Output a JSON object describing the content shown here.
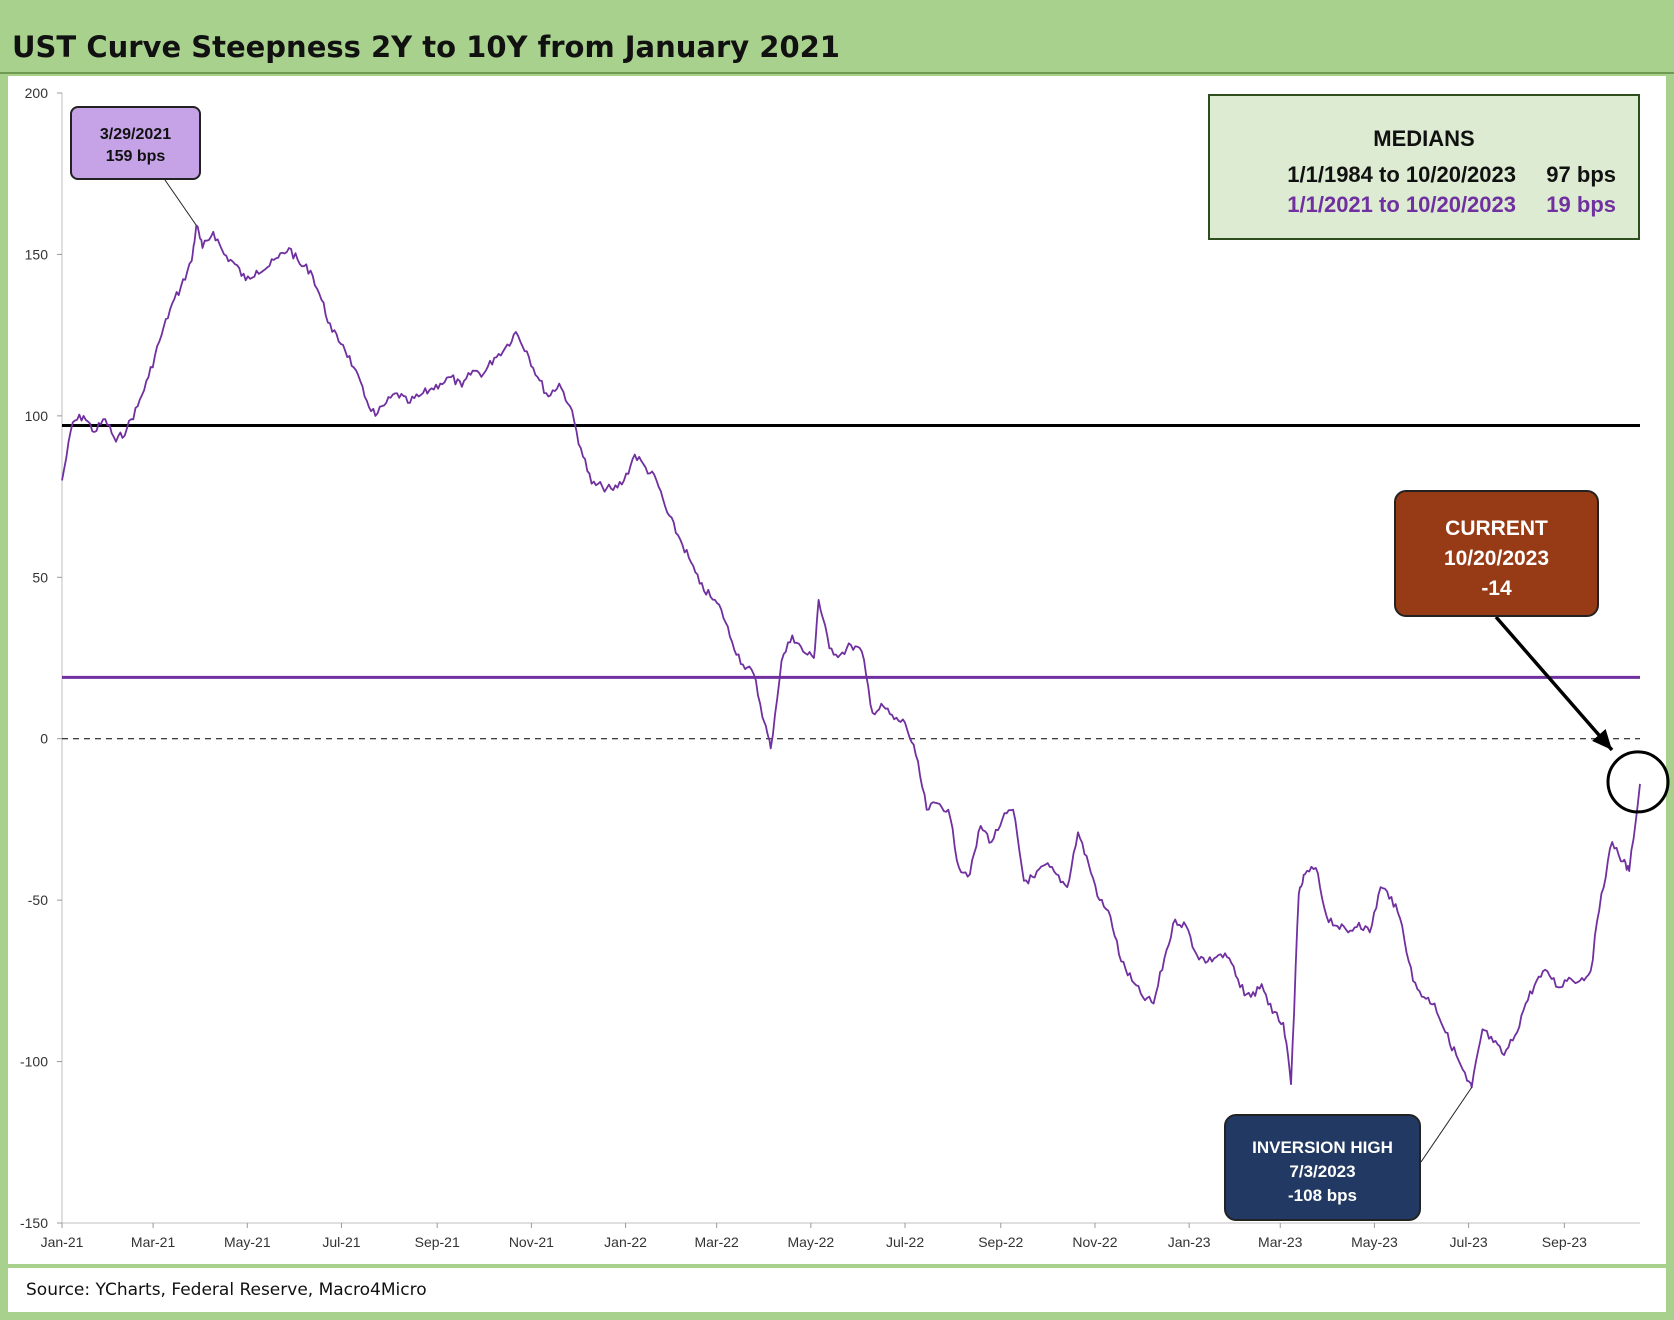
{
  "title": "UST Curve Steepness 2Y to 10Y from January 2021",
  "source": "Source: YCharts, Federal Reserve, Macro4Micro",
  "chart_data": {
    "type": "line",
    "title": "UST Curve Steepness 2Y to 10Y from January 2021",
    "xlabel": "",
    "ylabel": "",
    "ylim": [
      -150,
      200
    ],
    "yticks": [
      200,
      150,
      100,
      50,
      0,
      -50,
      -100,
      -150
    ],
    "x_range": [
      "2021-01-01",
      "2023-10-20"
    ],
    "x_ticks": [
      {
        "date": "2021-01-01",
        "label": "Jan-21"
      },
      {
        "date": "2021-03-01",
        "label": "Mar-21"
      },
      {
        "date": "2021-05-01",
        "label": "May-21"
      },
      {
        "date": "2021-07-01",
        "label": "Jul-21"
      },
      {
        "date": "2021-09-01",
        "label": "Sep-21"
      },
      {
        "date": "2021-11-01",
        "label": "Nov-21"
      },
      {
        "date": "2022-01-01",
        "label": "Jan-22"
      },
      {
        "date": "2022-03-01",
        "label": "Mar-22"
      },
      {
        "date": "2022-05-01",
        "label": "May-22"
      },
      {
        "date": "2022-07-01",
        "label": "Jul-22"
      },
      {
        "date": "2022-09-01",
        "label": "Sep-22"
      },
      {
        "date": "2022-11-01",
        "label": "Nov-22"
      },
      {
        "date": "2023-01-01",
        "label": "Jan-23"
      },
      {
        "date": "2023-03-01",
        "label": "Mar-23"
      },
      {
        "date": "2023-05-01",
        "label": "May-23"
      },
      {
        "date": "2023-07-01",
        "label": "Jul-23"
      },
      {
        "date": "2023-09-01",
        "label": "Sep-23"
      }
    ],
    "grid": false,
    "series": [
      {
        "color": "#7030a0",
        "points": [
          [
            "2021-01-01",
            80
          ],
          [
            "2021-01-08",
            98
          ],
          [
            "2021-01-15",
            100
          ],
          [
            "2021-01-22",
            95
          ],
          [
            "2021-01-29",
            99
          ],
          [
            "2021-02-05",
            92
          ],
          [
            "2021-02-12",
            96
          ],
          [
            "2021-02-19",
            103
          ],
          [
            "2021-02-26",
            112
          ],
          [
            "2021-03-05",
            123
          ],
          [
            "2021-03-12",
            133
          ],
          [
            "2021-03-19",
            140
          ],
          [
            "2021-03-26",
            148
          ],
          [
            "2021-03-29",
            159
          ],
          [
            "2021-04-02",
            152
          ],
          [
            "2021-04-09",
            157
          ],
          [
            "2021-04-16",
            150
          ],
          [
            "2021-04-23",
            147
          ],
          [
            "2021-04-30",
            142
          ],
          [
            "2021-05-07",
            145
          ],
          [
            "2021-05-14",
            146
          ],
          [
            "2021-05-21",
            149
          ],
          [
            "2021-05-28",
            152
          ],
          [
            "2021-06-04",
            147
          ],
          [
            "2021-06-11",
            145
          ],
          [
            "2021-06-18",
            136
          ],
          [
            "2021-06-25",
            126
          ],
          [
            "2021-07-02",
            122
          ],
          [
            "2021-07-09",
            115
          ],
          [
            "2021-07-16",
            106
          ],
          [
            "2021-07-23",
            100
          ],
          [
            "2021-07-30",
            104
          ],
          [
            "2021-08-06",
            107
          ],
          [
            "2021-08-13",
            104
          ],
          [
            "2021-08-20",
            106
          ],
          [
            "2021-08-27",
            108
          ],
          [
            "2021-09-03",
            110
          ],
          [
            "2021-09-10",
            112
          ],
          [
            "2021-09-17",
            109
          ],
          [
            "2021-09-24",
            114
          ],
          [
            "2021-10-01",
            113
          ],
          [
            "2021-10-08",
            118
          ],
          [
            "2021-10-15",
            121
          ],
          [
            "2021-10-22",
            126
          ],
          [
            "2021-10-29",
            120
          ],
          [
            "2021-11-05",
            112
          ],
          [
            "2021-11-12",
            106
          ],
          [
            "2021-11-19",
            110
          ],
          [
            "2021-11-26",
            103
          ],
          [
            "2021-12-03",
            90
          ],
          [
            "2021-12-10",
            79
          ],
          [
            "2021-12-17",
            78
          ],
          [
            "2021-12-24",
            77
          ],
          [
            "2021-12-31",
            80
          ],
          [
            "2022-01-07",
            88
          ],
          [
            "2022-01-14",
            84
          ],
          [
            "2022-01-21",
            80
          ],
          [
            "2022-01-28",
            70
          ],
          [
            "2022-02-04",
            63
          ],
          [
            "2022-02-11",
            56
          ],
          [
            "2022-02-18",
            48
          ],
          [
            "2022-02-25",
            44
          ],
          [
            "2022-03-04",
            40
          ],
          [
            "2022-03-11",
            30
          ],
          [
            "2022-03-18",
            23
          ],
          [
            "2022-03-25",
            20
          ],
          [
            "2022-04-01",
            5
          ],
          [
            "2022-04-05",
            -3
          ],
          [
            "2022-04-12",
            24
          ],
          [
            "2022-04-19",
            32
          ],
          [
            "2022-04-26",
            27
          ],
          [
            "2022-05-03",
            25
          ],
          [
            "2022-05-06",
            43
          ],
          [
            "2022-05-13",
            28
          ],
          [
            "2022-05-20",
            26
          ],
          [
            "2022-05-27",
            29
          ],
          [
            "2022-06-03",
            27
          ],
          [
            "2022-06-10",
            8
          ],
          [
            "2022-06-17",
            10
          ],
          [
            "2022-06-24",
            6
          ],
          [
            "2022-07-01",
            5
          ],
          [
            "2022-07-08",
            -5
          ],
          [
            "2022-07-15",
            -22
          ],
          [
            "2022-07-22",
            -20
          ],
          [
            "2022-07-29",
            -22
          ],
          [
            "2022-08-05",
            -40
          ],
          [
            "2022-08-12",
            -42
          ],
          [
            "2022-08-19",
            -27
          ],
          [
            "2022-08-26",
            -32
          ],
          [
            "2022-09-02",
            -25
          ],
          [
            "2022-09-09",
            -22
          ],
          [
            "2022-09-16",
            -44
          ],
          [
            "2022-09-23",
            -43
          ],
          [
            "2022-09-30",
            -39
          ],
          [
            "2022-10-07",
            -42
          ],
          [
            "2022-10-14",
            -46
          ],
          [
            "2022-10-21",
            -29
          ],
          [
            "2022-10-28",
            -39
          ],
          [
            "2022-11-04",
            -50
          ],
          [
            "2022-11-11",
            -55
          ],
          [
            "2022-11-18",
            -69
          ],
          [
            "2022-11-25",
            -75
          ],
          [
            "2022-12-02",
            -80
          ],
          [
            "2022-12-09",
            -82
          ],
          [
            "2022-12-16",
            -68
          ],
          [
            "2022-12-23",
            -56
          ],
          [
            "2022-12-30",
            -58
          ],
          [
            "2023-01-06",
            -67
          ],
          [
            "2023-01-13",
            -69
          ],
          [
            "2023-01-20",
            -67
          ],
          [
            "2023-01-27",
            -68
          ],
          [
            "2023-02-03",
            -77
          ],
          [
            "2023-02-10",
            -80
          ],
          [
            "2023-02-17",
            -76
          ],
          [
            "2023-02-24",
            -85
          ],
          [
            "2023-03-03",
            -88
          ],
          [
            "2023-03-08",
            -107
          ],
          [
            "2023-03-13",
            -48
          ],
          [
            "2023-03-17",
            -42
          ],
          [
            "2023-03-24",
            -40
          ],
          [
            "2023-03-31",
            -55
          ],
          [
            "2023-04-07",
            -58
          ],
          [
            "2023-04-14",
            -60
          ],
          [
            "2023-04-21",
            -57
          ],
          [
            "2023-04-28",
            -60
          ],
          [
            "2023-05-05",
            -46
          ],
          [
            "2023-05-12",
            -49
          ],
          [
            "2023-05-19",
            -58
          ],
          [
            "2023-05-26",
            -75
          ],
          [
            "2023-06-02",
            -80
          ],
          [
            "2023-06-09",
            -82
          ],
          [
            "2023-06-16",
            -91
          ],
          [
            "2023-06-23",
            -98
          ],
          [
            "2023-06-30",
            -106
          ],
          [
            "2023-07-03",
            -108
          ],
          [
            "2023-07-10",
            -90
          ],
          [
            "2023-07-17",
            -94
          ],
          [
            "2023-07-24",
            -98
          ],
          [
            "2023-07-31",
            -92
          ],
          [
            "2023-08-07",
            -82
          ],
          [
            "2023-08-14",
            -75
          ],
          [
            "2023-08-21",
            -72
          ],
          [
            "2023-08-28",
            -77
          ],
          [
            "2023-09-04",
            -74
          ],
          [
            "2023-09-11",
            -75
          ],
          [
            "2023-09-18",
            -72
          ],
          [
            "2023-09-25",
            -48
          ],
          [
            "2023-10-02",
            -32
          ],
          [
            "2023-10-09",
            -38
          ],
          [
            "2023-10-13",
            -41
          ],
          [
            "2023-10-20",
            -14
          ]
        ]
      }
    ],
    "reference_lines": [
      {
        "value": 97,
        "color": "#000000",
        "style": "solid"
      },
      {
        "value": 19,
        "color": "#7030a0",
        "style": "solid"
      },
      {
        "value": 0,
        "color": "#000000",
        "style": "dashed"
      }
    ],
    "annotations": {
      "peak": {
        "date": "2021-03-29",
        "value": 159,
        "lines": [
          "3/29/2021",
          "159 bps"
        ],
        "color": "#c5a3e6"
      },
      "current": {
        "date": "2023-10-20",
        "value": -14,
        "lines": [
          "CURRENT",
          "10/20/2023",
          "-14"
        ],
        "color": "#963b16"
      },
      "trough": {
        "date": "2023-07-03",
        "value": -108,
        "lines": [
          "INVERSION HIGH",
          "7/3/2023",
          "-108 bps"
        ],
        "color": "#223a63"
      }
    },
    "medians": {
      "title": "MEDIANS",
      "rows": [
        {
          "label": "1/1/1984 to 10/20/2023",
          "value": "97 bps",
          "color": "#111111"
        },
        {
          "label": "1/1/2021 to 10/20/2023",
          "value": "19 bps",
          "color": "#7030a0"
        }
      ]
    }
  }
}
